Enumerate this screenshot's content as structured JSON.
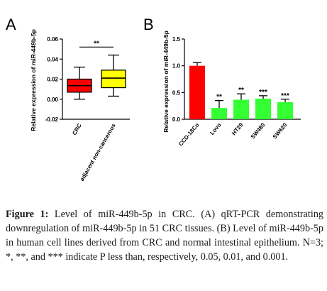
{
  "chart_data": [
    {
      "panel": "A",
      "type": "box",
      "ylabel": "Relative expression of miR-449b-5p",
      "ylim": [
        -0.02,
        0.06
      ],
      "yticks": [
        "-0.02",
        "0.00",
        "0.02",
        "0.04",
        "0.06"
      ],
      "yticks_values": [
        -0.02,
        0.0,
        0.02,
        0.04,
        0.06
      ],
      "categories": [
        "CRC",
        "adjacent non-cancerous"
      ],
      "boxes": [
        {
          "min": 0.0,
          "q1": 0.007,
          "median": 0.0135,
          "q3": 0.02,
          "max": 0.032,
          "color": "#ff0000"
        },
        {
          "min": 0.003,
          "q1": 0.0115,
          "median": 0.021,
          "q3": 0.029,
          "max": 0.044,
          "color": "#ffff00"
        }
      ],
      "significance": {
        "label": "**",
        "y": 0.052
      }
    },
    {
      "panel": "B",
      "type": "bar",
      "ylabel": "Relative expression of miR-449b-5p",
      "ylim": [
        0,
        1.5
      ],
      "yticks": [
        "0.0",
        "0.5",
        "1.0",
        "1.5"
      ],
      "yticks_values": [
        0.0,
        0.5,
        1.0,
        1.5
      ],
      "categories": [
        "CCD-18Co",
        "Lovo",
        "HT29",
        "SW480",
        "SW620"
      ],
      "values": [
        1.0,
        0.21,
        0.365,
        0.385,
        0.32
      ],
      "errors": [
        0.06,
        0.14,
        0.11,
        0.055,
        0.055
      ],
      "colors": [
        "#ff0000",
        "#33ff33",
        "#33ff33",
        "#33ff33",
        "#33ff33"
      ],
      "labels": [
        "",
        "**",
        "**",
        "***",
        "***"
      ]
    }
  ],
  "caption": {
    "lead": "Figure 1:",
    "text": " Level of miR-449b-5p in CRC. (A) qRT-PCR demonstrating downregulation of miR-449b-5p in 51 CRC tissues. (B) Level of miR-449b-5p in human cell lines derived from CRC and normal intestinal epithelium. N=3; *, **, and *** indicate P less than, respectively, 0.05, 0.01, and 0.001."
  }
}
